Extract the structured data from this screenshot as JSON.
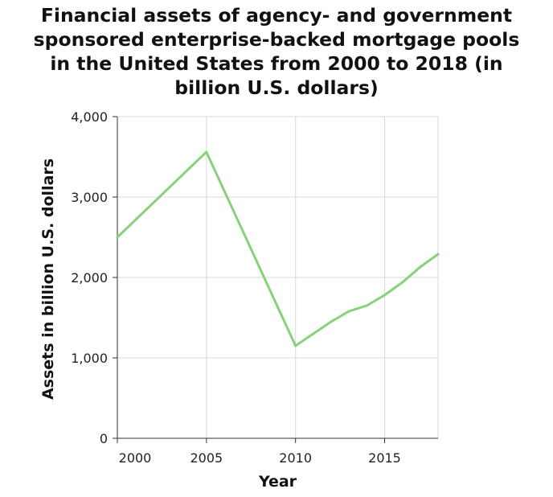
{
  "chart_data": {
    "type": "line",
    "title_lines": [
      "Financial assets of agency- and government",
      "sponsored enterprise-backed mortgage pools",
      "in the United States from 2000 to 2018 (in",
      "billion U.S. dollars)"
    ],
    "xlabel": "Year",
    "ylabel": "Assets in billion U.S. dollars",
    "xlim": [
      2000,
      2018
    ],
    "ylim": [
      0,
      4000
    ],
    "x_ticks": [
      2000,
      2005,
      2010,
      2015
    ],
    "y_ticks": [
      0,
      1000,
      2000,
      3000,
      4000
    ],
    "y_tick_labels": [
      "0",
      "1,000",
      "2,000",
      "3,000",
      "4,000"
    ],
    "grid": true,
    "line_color": "#88d17a",
    "series": [
      {
        "x": [
          2000,
          2005,
          2010,
          2011,
          2012,
          2013,
          2014,
          2015,
          2016,
          2017,
          2018
        ],
        "values": [
          2500,
          3560,
          1150,
          1300,
          1450,
          1580,
          1650,
          1780,
          1940,
          2130,
          2290
        ]
      }
    ]
  }
}
